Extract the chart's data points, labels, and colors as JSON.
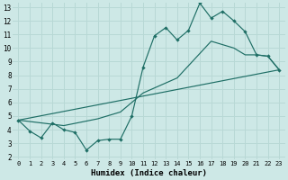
{
  "xlabel": "Humidex (Indice chaleur)",
  "xlim": [
    -0.5,
    23.5
  ],
  "ylim": [
    1.8,
    13.3
  ],
  "xticks": [
    0,
    1,
    2,
    3,
    4,
    5,
    6,
    7,
    8,
    9,
    10,
    11,
    12,
    13,
    14,
    15,
    16,
    17,
    18,
    19,
    20,
    21,
    22,
    23
  ],
  "yticks": [
    2,
    3,
    4,
    5,
    6,
    7,
    8,
    9,
    10,
    11,
    12,
    13
  ],
  "bg_color": "#cde8e6",
  "grid_color": "#b8d8d5",
  "line_color": "#1e6e65",
  "line1_x": [
    0,
    1,
    2,
    3,
    4,
    5,
    6,
    7,
    8,
    9,
    10,
    11,
    12,
    13,
    14,
    15,
    16,
    17,
    18,
    19,
    20,
    21,
    22,
    23
  ],
  "line1_y": [
    4.7,
    3.9,
    3.4,
    4.5,
    4.0,
    3.8,
    2.5,
    3.2,
    3.3,
    3.3,
    5.0,
    8.6,
    10.9,
    11.5,
    10.6,
    11.3,
    13.3,
    12.2,
    12.7,
    12.0,
    11.2,
    9.5,
    9.4,
    8.4
  ],
  "line2_x": [
    0,
    4,
    7,
    9,
    11,
    14,
    17,
    19,
    20,
    21,
    22,
    23
  ],
  "line2_y": [
    4.7,
    4.3,
    4.8,
    5.3,
    6.7,
    7.8,
    10.5,
    10.0,
    9.5,
    9.5,
    9.4,
    8.4
  ],
  "line3_x": [
    0,
    23
  ],
  "line3_y": [
    4.7,
    8.4
  ]
}
